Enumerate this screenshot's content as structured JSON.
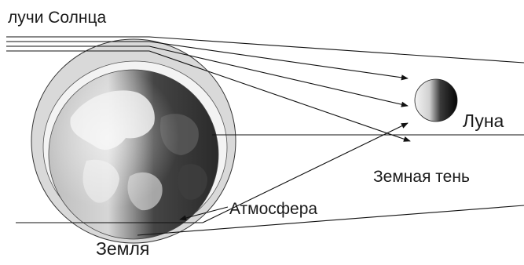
{
  "labels": {
    "sun_rays": "лучи Солнца",
    "moon": "Луна",
    "earth_shadow": "Земная тень",
    "atmosphere": "Атмосфера",
    "earth": "Земля"
  },
  "colors": {
    "atmosphere_ring": "#d9d9d9",
    "earth_day": "#c8c8c8",
    "earth_night": "#2e2e2e",
    "moon_lit": "#f2f2f2",
    "moon_dark": "#0a0a0a",
    "line": "#111111",
    "text": "#1a1a1a"
  }
}
